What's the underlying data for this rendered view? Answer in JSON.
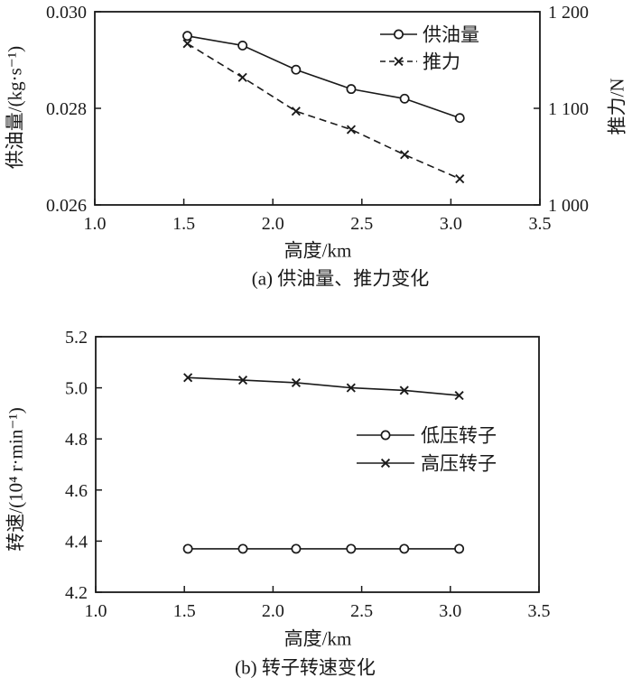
{
  "figure": {
    "background": "#ffffff",
    "line_color": "#1a1a1a"
  },
  "chart_data": [
    {
      "id": "a",
      "type": "line",
      "caption": "(a) 供油量、推力变化",
      "xlabel": "高度/km",
      "ylabel_left": "供油量/(kg·s⁻¹)",
      "ylabel_right": "推力/N",
      "xlim": [
        1.0,
        3.5
      ],
      "ylim_left": [
        0.026,
        0.03
      ],
      "ylim_right": [
        1000,
        1200
      ],
      "xticks": {
        "values": [
          1.0,
          1.5,
          2.0,
          2.5,
          3.0,
          3.5
        ],
        "labels": [
          "1.0",
          "1.5",
          "2.0",
          "2.5",
          "3.0",
          "3.5"
        ]
      },
      "yticks_left": {
        "values": [
          0.026,
          0.028,
          0.03
        ],
        "labels": [
          "0.026",
          "0.028",
          "0.030"
        ]
      },
      "yticks_right": {
        "values": [
          1000,
          1100,
          1200
        ],
        "labels": [
          "1 000",
          "1 100",
          "1 200"
        ]
      },
      "grid": false,
      "legend_position": "upper-right-inside",
      "x": [
        1.52,
        1.83,
        2.13,
        2.44,
        2.74,
        3.05
      ],
      "series": [
        {
          "name": "供油量",
          "axis": "left",
          "line": "solid",
          "marker": "circle",
          "values": [
            0.0295,
            0.0293,
            0.0288,
            0.0284,
            0.0282,
            0.0278
          ]
        },
        {
          "name": "推力",
          "axis": "right",
          "line": "dashed",
          "marker": "x",
          "values": [
            1167,
            1132,
            1097,
            1078,
            1052,
            1027
          ]
        }
      ]
    },
    {
      "id": "b",
      "type": "line",
      "caption": "(b) 转子转速变化",
      "xlabel": "高度/km",
      "ylabel_left": "转速/(10⁴ r·min⁻¹)",
      "xlim": [
        1.0,
        3.5
      ],
      "ylim_left": [
        4.2,
        5.2
      ],
      "xticks": {
        "values": [
          1.0,
          1.5,
          2.0,
          2.5,
          3.0,
          3.5
        ],
        "labels": [
          "1.0",
          "1.5",
          "2.0",
          "2.5",
          "3.0",
          "3.5"
        ]
      },
      "yticks_left": {
        "values": [
          4.2,
          4.4,
          4.6,
          4.8,
          5.0,
          5.2
        ],
        "labels": [
          "4.2",
          "4.4",
          "4.6",
          "4.8",
          "5.0",
          "5.2"
        ]
      },
      "grid": false,
      "legend_position": "middle-right-inside",
      "x": [
        1.52,
        1.83,
        2.13,
        2.44,
        2.74,
        3.05
      ],
      "series": [
        {
          "name": "低压转子",
          "axis": "left",
          "line": "solid",
          "marker": "circle",
          "values": [
            4.37,
            4.37,
            4.37,
            4.37,
            4.37,
            4.37
          ]
        },
        {
          "name": "高压转子",
          "axis": "left",
          "line": "solid",
          "marker": "x",
          "values": [
            5.04,
            5.03,
            5.02,
            5.0,
            4.99,
            4.97
          ]
        }
      ]
    }
  ]
}
